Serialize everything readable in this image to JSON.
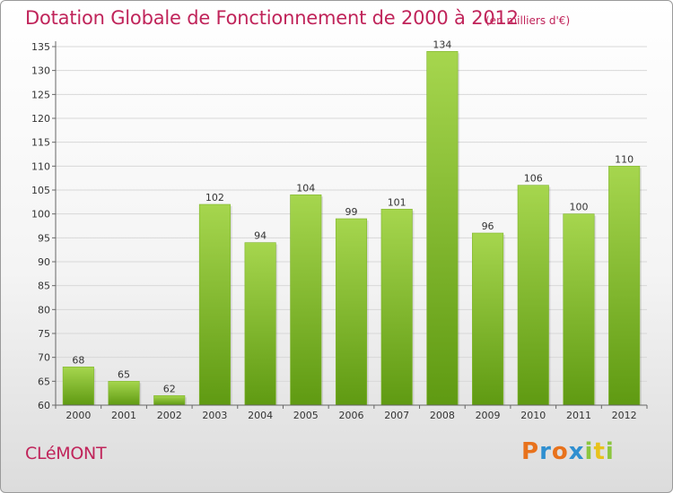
{
  "title": "Dotation Globale de Fonctionnement de 2000 à 2012",
  "unit": "(en milliers d'€)",
  "commune": "CLéMONT",
  "logo": {
    "text": "Proxiti",
    "colors": [
      "#e8721c",
      "#2f8fd0",
      "#8cc63f",
      "#e8c21c"
    ]
  },
  "colors": {
    "bar_light": "#a6d64e",
    "bar_dark": "#5f9a12",
    "grid": "#d8d8d8",
    "title": "#c0245a"
  },
  "chart_data": {
    "type": "bar",
    "title": "Dotation Globale de Fonctionnement de 2000 à 2012",
    "subtitle": "(en milliers d'€)",
    "categories": [
      "2000",
      "2001",
      "2002",
      "2003",
      "2004",
      "2005",
      "2006",
      "2007",
      "2008",
      "2009",
      "2010",
      "2011",
      "2012"
    ],
    "values": [
      68,
      65,
      62,
      102,
      94,
      104,
      99,
      101,
      134,
      96,
      106,
      100,
      110
    ],
    "ylim": [
      60,
      135
    ],
    "yticks": [
      60,
      65,
      70,
      75,
      80,
      85,
      90,
      95,
      100,
      105,
      110,
      115,
      120,
      125,
      130,
      135
    ],
    "grid": true,
    "xlabel": "",
    "ylabel": ""
  }
}
